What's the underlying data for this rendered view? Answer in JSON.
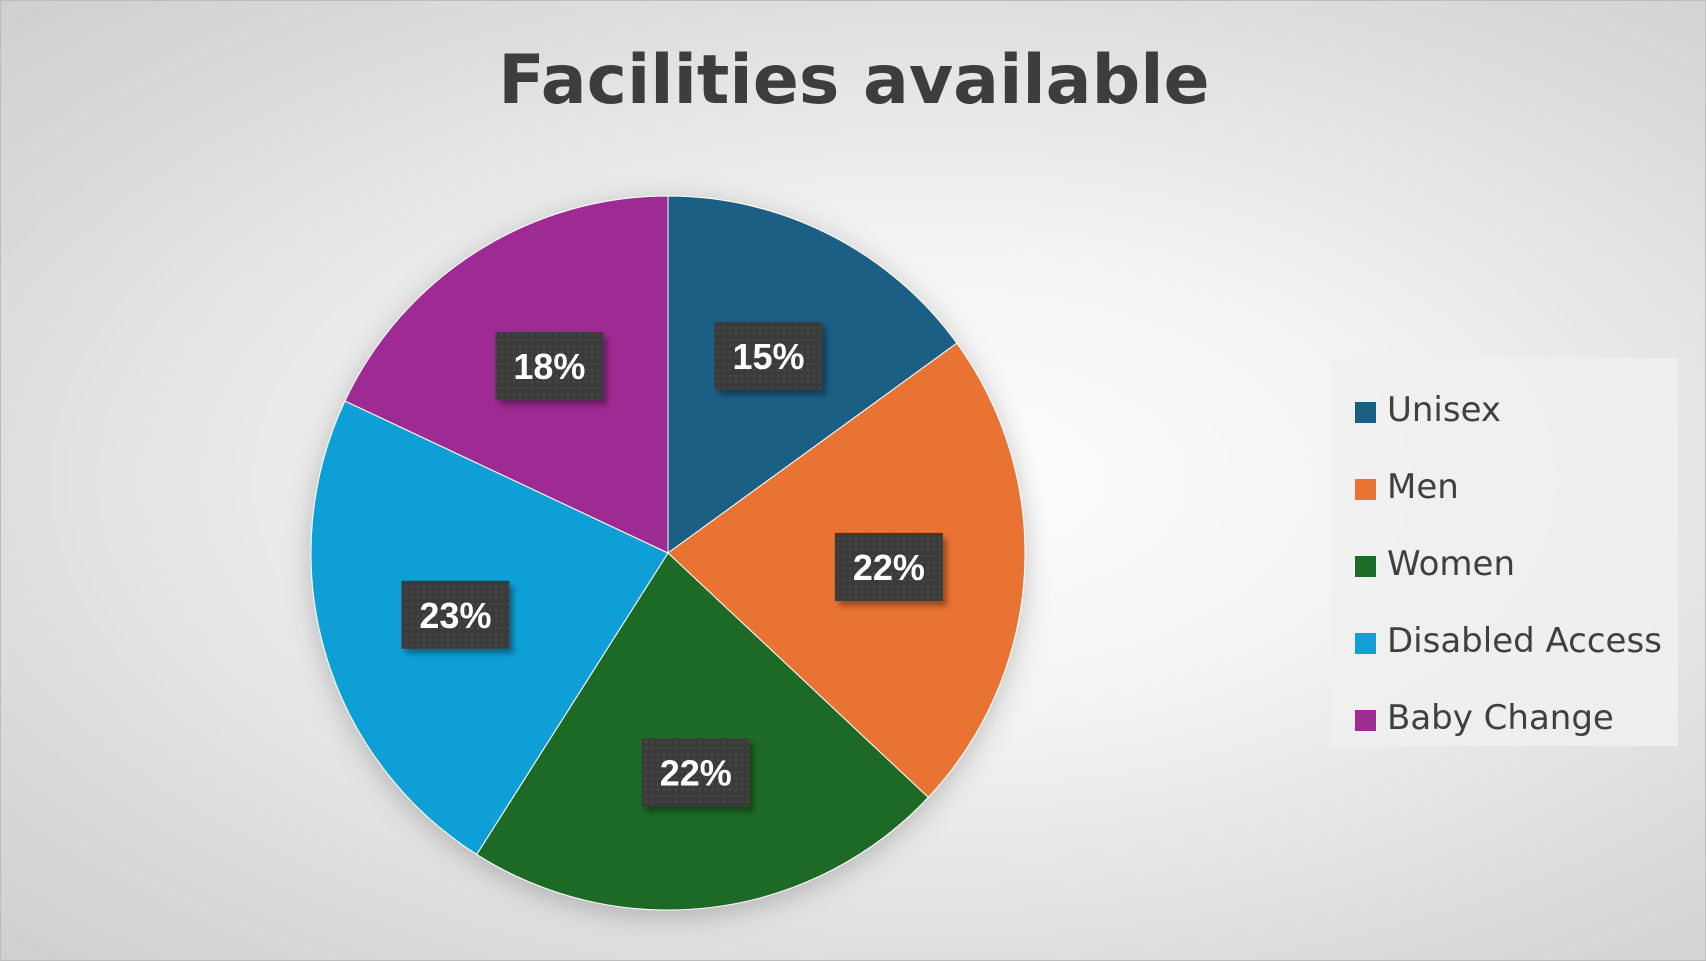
{
  "chart_data": {
    "type": "pie",
    "title": "Facilities available",
    "categories": [
      "Unisex",
      "Men",
      "Women",
      "Disabled Access",
      "Baby Change"
    ],
    "values": [
      15,
      22,
      22,
      23,
      18
    ],
    "labels": [
      "15%",
      "22%",
      "22%",
      "23%",
      "18%"
    ],
    "colors": [
      "#1a5f85",
      "#e97331",
      "#1c6b26",
      "#119fd6",
      "#9e2a93"
    ],
    "legend_position": "right"
  }
}
